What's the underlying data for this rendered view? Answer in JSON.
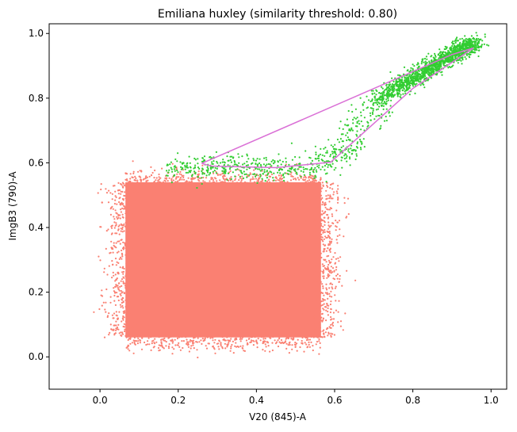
{
  "chart_data": {
    "type": "scatter",
    "title": "Emiliana huxley (similarity threshold: 0.80)",
    "xlabel": "V20 (845)-A",
    "ylabel": "ImgB3 (790)-A",
    "xlim": [
      -0.13,
      1.04
    ],
    "ylim": [
      -0.1,
      1.03
    ],
    "x_ticks": [
      "0.0",
      "0.2",
      "0.4",
      "0.6",
      "0.8",
      "1.0"
    ],
    "x_tick_values": [
      0.0,
      0.2,
      0.4,
      0.6,
      0.8,
      1.0
    ],
    "y_ticks": [
      "0.0",
      "0.2",
      "0.4",
      "0.6",
      "0.8",
      "1.0"
    ],
    "y_tick_values": [
      0.0,
      0.2,
      0.4,
      0.6,
      0.8,
      1.0
    ],
    "grid": false,
    "colors": {
      "background_points": "#fa8072",
      "selected_points": "#32cd32",
      "gate": "#da70d6"
    },
    "point_clouds": [
      {
        "class": "background",
        "color": "#fa8072",
        "description_region": "dense block",
        "x_range": [
          0.03,
          0.6
        ],
        "y_range": [
          0.03,
          0.57
        ]
      },
      {
        "class": "selected",
        "color": "#32cd32",
        "x_range": [
          0.15,
          0.99
        ],
        "y_range": [
          0.52,
          0.98
        ]
      }
    ],
    "gate_polygon": [
      [
        0.26,
        0.598
      ],
      [
        0.285,
        0.59
      ],
      [
        0.45,
        0.585
      ],
      [
        0.59,
        0.602
      ],
      [
        0.8,
        0.83
      ],
      [
        0.955,
        0.955
      ],
      [
        0.9,
        0.935
      ],
      [
        0.26,
        0.598
      ]
    ]
  }
}
